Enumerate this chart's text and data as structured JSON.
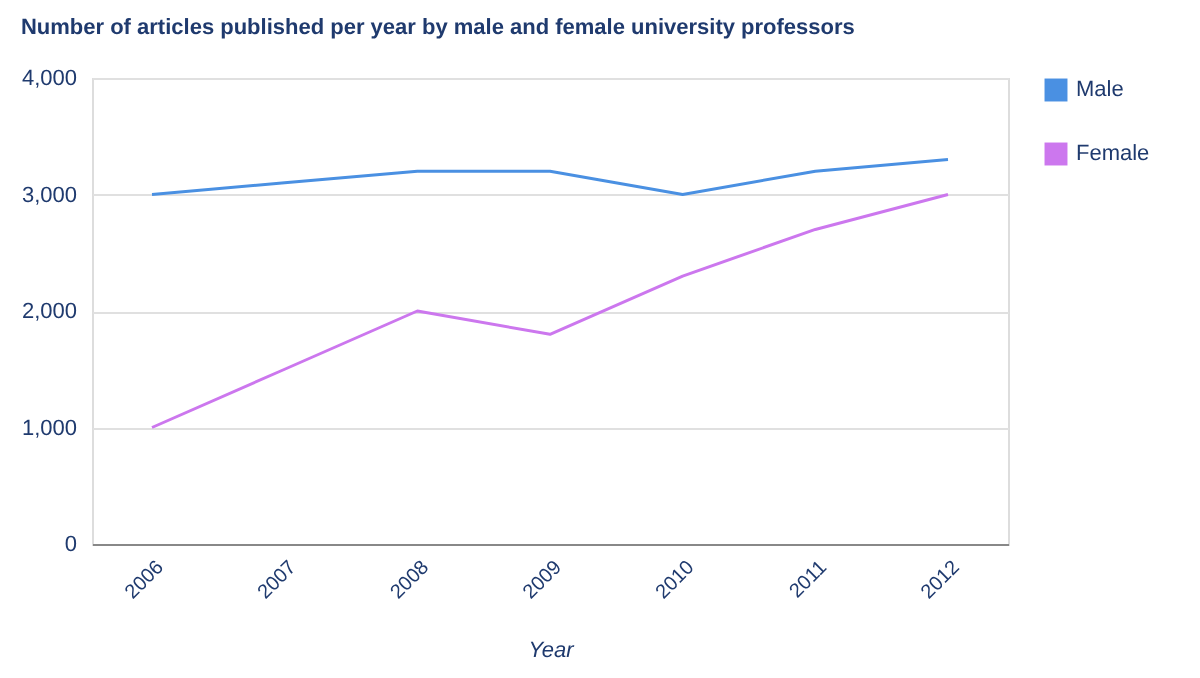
{
  "chart_data": {
    "type": "line",
    "title": "Number of articles published per year by male and female university professors",
    "xlabel": "Year",
    "categories": [
      "2006",
      "2007",
      "2008",
      "2009",
      "2010",
      "2011",
      "2012"
    ],
    "series": [
      {
        "name": "Male",
        "color": "#4a90e2",
        "values": [
          3000,
          3100,
          3200,
          3200,
          3000,
          3200,
          3300
        ]
      },
      {
        "name": "Female",
        "color": "#cc77ee",
        "values": [
          1000,
          1500,
          2000,
          1800,
          2300,
          2700,
          3000
        ]
      }
    ],
    "ylim": [
      0,
      4000
    ],
    "yticks": [
      0,
      {
        "value": 1000,
        "label": "1,000"
      },
      {
        "value": 2000,
        "label": "2,000"
      },
      {
        "value": 3000,
        "label": "3,000"
      },
      {
        "value": 4000,
        "label": "4,000"
      }
    ],
    "grid": "y",
    "legend": "top right",
    "marker": "none",
    "line_style": "solid"
  }
}
